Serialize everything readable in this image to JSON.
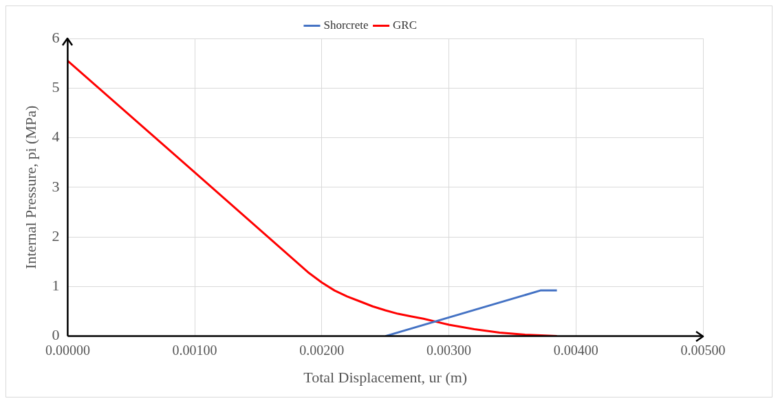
{
  "chart_data": {
    "type": "line",
    "xlabel": "Total Displacement, ur (m)",
    "ylabel": "Internal Pressure, pi (MPa)",
    "xlim": [
      0,
      0.005
    ],
    "xticks": [
      {
        "value": 0,
        "label": "0.00000"
      },
      {
        "value": 0.001,
        "label": "0.00100"
      },
      {
        "value": 0.002,
        "label": "0.00200"
      },
      {
        "value": 0.003,
        "label": "0.00300"
      },
      {
        "value": 0.004,
        "label": "0.00400"
      },
      {
        "value": 0.005,
        "label": "0.00500"
      }
    ],
    "ylim": [
      0,
      6
    ],
    "yticks": [
      0,
      1,
      2,
      3,
      4,
      5,
      6
    ],
    "grid": true,
    "legend": "top",
    "marker": "none",
    "line_style": "solid",
    "series": [
      {
        "name": "Shorcrete",
        "color": "#4472c4",
        "x": [
          0.0025,
          0.00372,
          0.00385
        ],
        "values": [
          0,
          0.92,
          0.92
        ]
      },
      {
        "name": "GRC",
        "color": "#ff0000",
        "x": [
          0,
          0.001,
          0.0019,
          0.002,
          0.0021,
          0.0022,
          0.0023,
          0.0024,
          0.0025,
          0.0026,
          0.0027,
          0.0028,
          0.0029,
          0.003,
          0.0032,
          0.0034,
          0.0036,
          0.00385
        ],
        "values": [
          5.55,
          3.3,
          1.27,
          1.08,
          0.92,
          0.8,
          0.7,
          0.6,
          0.52,
          0.45,
          0.4,
          0.35,
          0.29,
          0.23,
          0.14,
          0.07,
          0.03,
          0
        ]
      }
    ]
  }
}
